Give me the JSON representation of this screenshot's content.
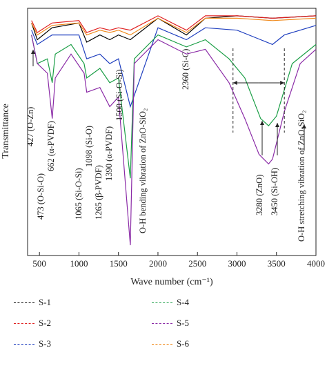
{
  "chart_data": {
    "type": "line",
    "title": "",
    "xlabel": "Wave number (cm⁻¹)",
    "ylabel": "Transmittance",
    "xlim": [
      350,
      4000
    ],
    "xticks": [
      500,
      1000,
      1500,
      2000,
      2500,
      3000,
      3500,
      4000
    ],
    "grid": false,
    "legend_position": "bottom",
    "series": [
      {
        "name": "S-1",
        "color": "#000000",
        "values": [
          [
            400,
            0.95
          ],
          [
            473,
            0.88
          ],
          [
            660,
            0.93
          ],
          [
            1000,
            0.95
          ],
          [
            1098,
            0.87
          ],
          [
            1265,
            0.9
          ],
          [
            1390,
            0.88
          ],
          [
            1500,
            0.9
          ],
          [
            1650,
            0.88
          ],
          [
            2000,
            0.97
          ],
          [
            2360,
            0.9
          ],
          [
            2600,
            0.97
          ],
          [
            3000,
            0.98
          ],
          [
            3450,
            0.97
          ],
          [
            4000,
            0.98
          ]
        ]
      },
      {
        "name": "S-2",
        "color": "#e02020",
        "values": [
          [
            400,
            0.96
          ],
          [
            473,
            0.91
          ],
          [
            660,
            0.95
          ],
          [
            1000,
            0.96
          ],
          [
            1098,
            0.91
          ],
          [
            1265,
            0.93
          ],
          [
            1390,
            0.92
          ],
          [
            1500,
            0.93
          ],
          [
            1650,
            0.92
          ],
          [
            2000,
            0.98
          ],
          [
            2360,
            0.92
          ],
          [
            2600,
            0.98
          ],
          [
            3000,
            0.98
          ],
          [
            3450,
            0.97
          ],
          [
            4000,
            0.98
          ]
        ]
      },
      {
        "name": "S-3",
        "color": "#1f3fbf",
        "values": [
          [
            400,
            0.92
          ],
          [
            473,
            0.86
          ],
          [
            660,
            0.9
          ],
          [
            1000,
            0.9
          ],
          [
            1098,
            0.8
          ],
          [
            1265,
            0.82
          ],
          [
            1390,
            0.78
          ],
          [
            1500,
            0.8
          ],
          [
            1650,
            0.6
          ],
          [
            2000,
            0.93
          ],
          [
            2360,
            0.88
          ],
          [
            2600,
            0.93
          ],
          [
            3000,
            0.92
          ],
          [
            3300,
            0.88
          ],
          [
            3450,
            0.86
          ],
          [
            3600,
            0.9
          ],
          [
            4000,
            0.94
          ]
        ]
      },
      {
        "name": "S-4",
        "color": "#1a9e45",
        "values": [
          [
            400,
            0.9
          ],
          [
            473,
            0.78
          ],
          [
            600,
            0.8
          ],
          [
            662,
            0.7
          ],
          [
            700,
            0.82
          ],
          [
            900,
            0.86
          ],
          [
            1065,
            0.78
          ],
          [
            1098,
            0.72
          ],
          [
            1265,
            0.76
          ],
          [
            1390,
            0.7
          ],
          [
            1500,
            0.72
          ],
          [
            1650,
            0.3
          ],
          [
            1700,
            0.8
          ],
          [
            2000,
            0.9
          ],
          [
            2360,
            0.85
          ],
          [
            2600,
            0.88
          ],
          [
            2900,
            0.8
          ],
          [
            3100,
            0.72
          ],
          [
            3300,
            0.55
          ],
          [
            3400,
            0.52
          ],
          [
            3500,
            0.56
          ],
          [
            3700,
            0.78
          ],
          [
            4000,
            0.86
          ]
        ]
      },
      {
        "name": "S-5",
        "color": "#8a2aa6",
        "values": [
          [
            400,
            0.9
          ],
          [
            473,
            0.78
          ],
          [
            600,
            0.74
          ],
          [
            662,
            0.55
          ],
          [
            700,
            0.72
          ],
          [
            900,
            0.82
          ],
          [
            1065,
            0.74
          ],
          [
            1098,
            0.66
          ],
          [
            1265,
            0.68
          ],
          [
            1390,
            0.6
          ],
          [
            1500,
            0.64
          ],
          [
            1650,
            0.02
          ],
          [
            1700,
            0.78
          ],
          [
            2000,
            0.88
          ],
          [
            2360,
            0.82
          ],
          [
            2600,
            0.84
          ],
          [
            2900,
            0.7
          ],
          [
            3100,
            0.55
          ],
          [
            3280,
            0.4
          ],
          [
            3400,
            0.36
          ],
          [
            3450,
            0.38
          ],
          [
            3600,
            0.58
          ],
          [
            3800,
            0.78
          ],
          [
            4000,
            0.84
          ]
        ]
      },
      {
        "name": "S-6",
        "color": "#f08a1c",
        "values": [
          [
            400,
            0.95
          ],
          [
            473,
            0.9
          ],
          [
            660,
            0.94
          ],
          [
            1000,
            0.95
          ],
          [
            1098,
            0.9
          ],
          [
            1265,
            0.92
          ],
          [
            1390,
            0.91
          ],
          [
            1500,
            0.92
          ],
          [
            1650,
            0.9
          ],
          [
            2000,
            0.97
          ],
          [
            2360,
            0.91
          ],
          [
            2600,
            0.97
          ],
          [
            3000,
            0.97
          ],
          [
            3450,
            0.96
          ],
          [
            4000,
            0.97
          ]
        ]
      }
    ],
    "annotations": [
      {
        "x": 427,
        "text": "427 (O-Zn)"
      },
      {
        "x": 473,
        "text": "473 (O-Si-O)"
      },
      {
        "x": 662,
        "text": "662 (α-PVDF)"
      },
      {
        "x": 1065,
        "text": "1065 (Si-O-Si)"
      },
      {
        "x": 1098,
        "text": "1098 (Si-O)"
      },
      {
        "x": 1265,
        "text": "1265 (β-PVDF)"
      },
      {
        "x": 1390,
        "text": "1390 (α-PVDF)"
      },
      {
        "x": 1500,
        "text": "1500 (Si-O-Si)"
      },
      {
        "x": 1650,
        "text": "O-H bending vibration of ZnO-SiO₂"
      },
      {
        "x": 2360,
        "text": "2360 (Si-C)"
      },
      {
        "x": 3280,
        "text": "3280 (ZnO)"
      },
      {
        "x": 3450,
        "text": "3450 (Si-OH)"
      },
      {
        "x": 3600,
        "text": "O-H stretching vibration of ZnO-SiO₂"
      }
    ]
  }
}
